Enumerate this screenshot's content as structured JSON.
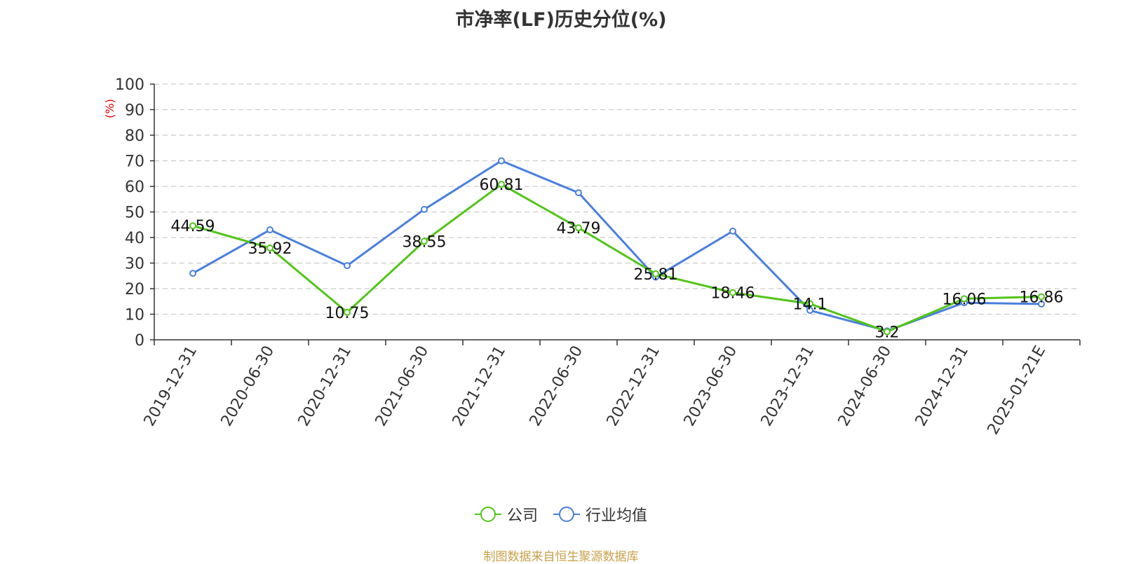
{
  "chart_data": {
    "type": "line",
    "title": "市净率(LF)历史分位(%)",
    "ylabel": "(%)",
    "xlabel": "",
    "categories": [
      "2019-12-31",
      "2020-06-30",
      "2020-12-31",
      "2021-06-30",
      "2021-12-31",
      "2022-06-30",
      "2022-12-31",
      "2023-06-30",
      "2023-12-31",
      "2024-06-30",
      "2024-12-31",
      "2025-01-21E"
    ],
    "ylim": [
      0,
      100
    ],
    "yticks": [
      0,
      10,
      20,
      30,
      40,
      50,
      60,
      70,
      80,
      90,
      100
    ],
    "grid": true,
    "legend_position": "bottom",
    "series": [
      {
        "name": "公司",
        "color": "#52c41a",
        "values": [
          44.59,
          35.92,
          10.75,
          38.55,
          60.81,
          43.79,
          25.81,
          18.46,
          14.1,
          3.2,
          16.06,
          16.86
        ],
        "labels": [
          "44.59",
          "35.92",
          "10.75",
          "38.55",
          "60.81",
          "43.79",
          "25.81",
          "18.46",
          "14.1",
          "3.2",
          "16.06",
          "16.86"
        ]
      },
      {
        "name": "行业均值",
        "color": "#4a7fdc",
        "values": [
          26,
          43,
          29,
          51,
          70,
          57.5,
          24.5,
          42.5,
          11.5,
          3.5,
          14.5,
          14
        ]
      }
    ],
    "source": "制图数据来自恒生聚源数据库"
  }
}
